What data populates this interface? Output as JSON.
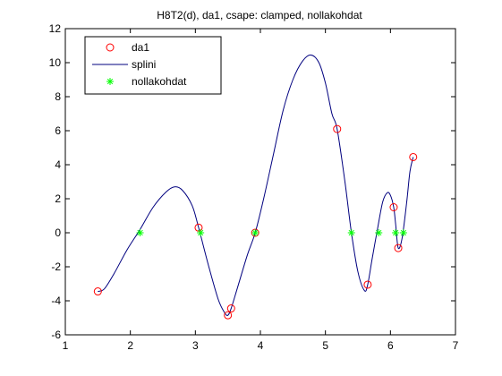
{
  "chart_data": {
    "type": "line",
    "title": "H8T2(d), da1, csape: clamped, nollakohdat",
    "xlabel": "",
    "ylabel": "",
    "xlim": [
      1,
      7
    ],
    "ylim": [
      -6,
      12
    ],
    "x_ticks": [
      "1",
      "2",
      "3",
      "4",
      "5",
      "6",
      "7"
    ],
    "y_ticks": [
      "-6",
      "-4",
      "-2",
      "0",
      "2",
      "4",
      "6",
      "8",
      "10",
      "12"
    ],
    "grid": false,
    "legend_position": "top-left",
    "series": [
      {
        "name": "da1",
        "style": "markers",
        "marker": "circle",
        "color": "#ff0000",
        "x": [
          1.5,
          3.05,
          3.5,
          3.55,
          3.92,
          5.18,
          5.65,
          6.05,
          6.12,
          6.35
        ],
        "y": [
          -3.45,
          0.3,
          -4.85,
          -4.45,
          0.0,
          6.1,
          -3.05,
          1.5,
          -0.9,
          4.45
        ]
      },
      {
        "name": "splini",
        "style": "line",
        "color": "#00007f",
        "x": [
          1.5,
          1.6,
          1.75,
          1.95,
          2.15,
          2.35,
          2.55,
          2.68,
          2.8,
          2.95,
          3.05,
          3.2,
          3.35,
          3.45,
          3.5,
          3.55,
          3.65,
          3.8,
          3.92,
          4.05,
          4.2,
          4.35,
          4.5,
          4.65,
          4.78,
          4.9,
          5.0,
          5.1,
          5.18,
          5.3,
          5.4,
          5.5,
          5.6,
          5.65,
          5.72,
          5.8,
          5.88,
          5.95,
          6.0,
          6.05,
          6.08,
          6.12,
          6.18,
          6.25,
          6.3,
          6.35
        ],
        "y": [
          -3.45,
          -3.3,
          -2.4,
          -1.0,
          0.2,
          1.5,
          2.4,
          2.7,
          2.5,
          1.6,
          0.3,
          -1.9,
          -3.9,
          -4.7,
          -4.85,
          -4.45,
          -3.2,
          -1.3,
          0.0,
          2.0,
          4.6,
          7.2,
          9.0,
          10.1,
          10.45,
          10.0,
          8.8,
          7.0,
          6.1,
          3.0,
          0.0,
          -2.3,
          -3.4,
          -3.05,
          -1.5,
          0.2,
          1.8,
          2.35,
          2.2,
          1.5,
          0.5,
          -0.9,
          -0.3,
          1.8,
          3.6,
          4.45
        ]
      },
      {
        "name": "nollakohdat",
        "style": "markers",
        "marker": "asterisk",
        "color": "#00ff00",
        "x": [
          2.15,
          3.08,
          3.92,
          5.4,
          5.82,
          6.08,
          6.2
        ],
        "y": [
          0,
          0,
          0,
          0,
          0,
          0,
          0
        ]
      }
    ]
  }
}
